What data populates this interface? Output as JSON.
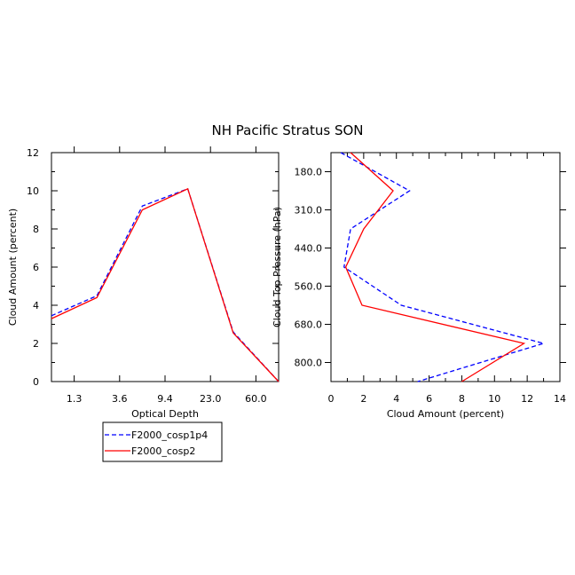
{
  "figure": {
    "title": "NH Pacific Stratus SON"
  },
  "legend": {
    "entries": [
      {
        "name": "F2000_cosp1p4",
        "color": "#0000ff",
        "style": "dashed"
      },
      {
        "name": "F2000_cosp2",
        "color": "#ff0000",
        "style": "solid"
      }
    ]
  },
  "chart_data": [
    {
      "type": "line",
      "xlabel": "Optical Depth",
      "ylabel": "Cloud Amount (percent)",
      "x_categories": [
        "1.3",
        "3.6",
        "9.4",
        "23.0",
        "60.0"
      ],
      "x_tick_positions": [
        1,
        3,
        5,
        7,
        9
      ],
      "xlim": [
        0,
        10
      ],
      "ylim": [
        0,
        12
      ],
      "y_ticks": [
        0,
        2,
        4,
        6,
        8,
        10,
        12
      ],
      "series": [
        {
          "name": "F2000_cosp1p4",
          "color": "#0000ff",
          "dash": true,
          "x": [
            0,
            2,
            4,
            6,
            8,
            10
          ],
          "values": [
            3.45,
            4.5,
            9.2,
            10.1,
            2.6,
            0.0
          ]
        },
        {
          "name": "F2000_cosp2",
          "color": "#ff0000",
          "dash": false,
          "x": [
            0,
            2,
            4,
            6,
            8,
            10
          ],
          "values": [
            3.3,
            4.4,
            9.0,
            10.1,
            2.55,
            0.0
          ]
        }
      ]
    },
    {
      "type": "line",
      "xlabel": "Cloud Amount (percent)",
      "ylabel": "Cloud Top Pressure (hPa)",
      "xlim": [
        0,
        14
      ],
      "x_ticks": [
        0,
        2,
        4,
        6,
        8,
        10,
        12,
        14
      ],
      "y_categories": [
        "180.0",
        "310.0",
        "440.0",
        "560.0",
        "680.0",
        "800.0"
      ],
      "y_tick_positions": [
        1,
        3,
        5,
        7,
        9,
        11
      ],
      "ylim": [
        12,
        0
      ],
      "series": [
        {
          "name": "F2000_cosp1p4",
          "color": "#0000ff",
          "dash": true,
          "level": [
            0,
            2,
            4,
            6,
            8,
            10,
            12
          ],
          "values": [
            0.6,
            4.8,
            1.2,
            0.8,
            4.3,
            13.0,
            5.3
          ]
        },
        {
          "name": "F2000_cosp2",
          "color": "#ff0000",
          "dash": false,
          "level": [
            0,
            2,
            4,
            6,
            8,
            10,
            12
          ],
          "values": [
            1.2,
            3.8,
            2.0,
            0.9,
            1.9,
            11.8,
            8.0
          ]
        }
      ]
    }
  ]
}
